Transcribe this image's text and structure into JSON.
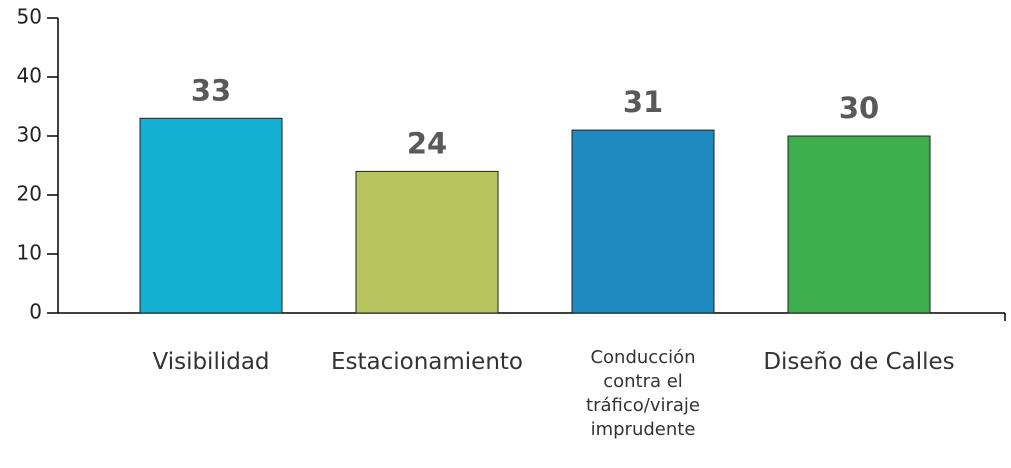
{
  "chart_data": {
    "type": "bar",
    "categories": [
      "Visibilidad",
      "Estacionamiento",
      "Conducción contra el tráfico/viraje imprudente",
      "Diseño de Calles"
    ],
    "values": [
      33,
      24,
      31,
      30
    ],
    "colors": [
      "#14b1d4",
      "#b8c45f",
      "#1f8ac0",
      "#3eae4c"
    ],
    "ylim": [
      0,
      50
    ],
    "yticks": [
      0,
      10,
      20,
      30,
      40,
      50
    ]
  }
}
